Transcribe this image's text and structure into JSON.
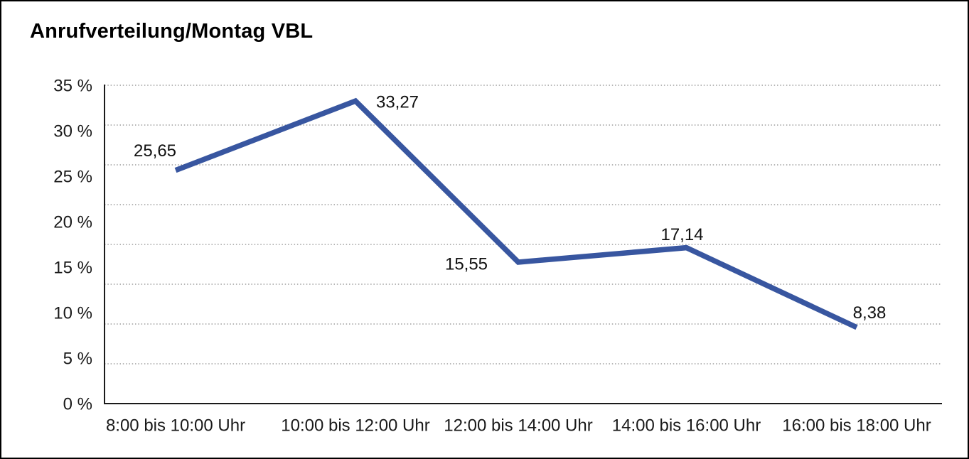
{
  "title": "Anrufverteilung/Montag VBL",
  "chart_data": {
    "type": "line",
    "title": "Anrufverteilung/Montag VBL",
    "categories": [
      "8:00 bis 10:00 Uhr",
      "10:00 bis 12:00 Uhr",
      "12:00 bis 14:00 Uhr",
      "14:00 bis 16:00 Uhr",
      "16:00 bis 18:00 Uhr"
    ],
    "values": [
      25.65,
      33.27,
      15.55,
      17.14,
      8.38
    ],
    "data_labels": [
      "25,65",
      "33,27",
      "15,55",
      "17,14",
      "8,38"
    ],
    "unit": "%",
    "xlabel": "",
    "ylabel": "",
    "ylim": [
      0,
      35
    ],
    "y_tick_labels": [
      "35 %",
      "30 %",
      "25 %",
      "20 %",
      "15 %",
      "10 %",
      "5 %",
      "0 %"
    ],
    "y_tick_step_percent": 5,
    "gridline_divisions": 8,
    "grid": "horizontal-dotted",
    "legend_position": "none",
    "line_color": "#3856A0",
    "axis_color": "#1a1a1a",
    "gridline_color": "#8a8a8a",
    "text_color": "#1a1a1a"
  }
}
